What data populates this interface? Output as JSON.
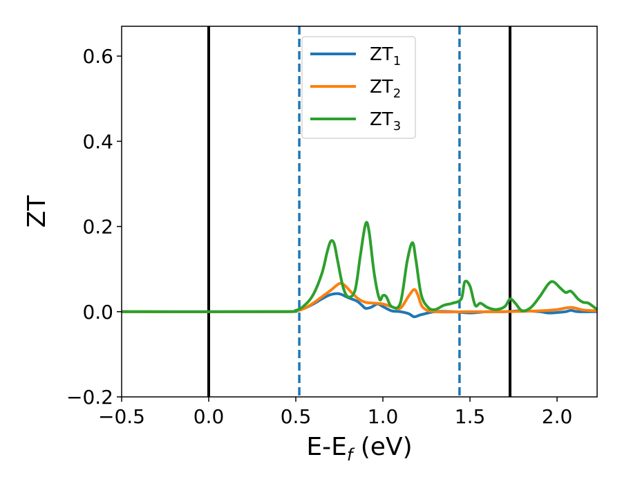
{
  "chart_data": {
    "type": "line",
    "xlabel": "E-E",
    "xlabel_sub": "f",
    "xlabel_unit": " (eV)",
    "ylabel": "ZT",
    "xlim": [
      -0.5,
      2.23
    ],
    "ylim": [
      -0.2,
      0.67
    ],
    "xticks": [
      -0.5,
      0.0,
      0.5,
      1.0,
      1.5,
      2.0
    ],
    "xtick_labels": [
      "−0.5",
      "0.0",
      "0.5",
      "1.0",
      "1.5",
      "2.0"
    ],
    "yticks": [
      -0.2,
      0.0,
      0.2,
      0.4,
      0.6
    ],
    "ytick_labels": [
      "−0.2",
      "0.0",
      "0.2",
      "0.4",
      "0.6"
    ],
    "grid": false,
    "legend_position": "top-center",
    "series": [
      {
        "name": "ZT",
        "sub": "1",
        "color": "#1f77b4",
        "x": [
          -0.5,
          0.4,
          0.5,
          0.55,
          0.6,
          0.65,
          0.7,
          0.75,
          0.8,
          0.85,
          0.88,
          0.9,
          0.93,
          0.97,
          1.0,
          1.05,
          1.1,
          1.15,
          1.18,
          1.22,
          1.3,
          1.4,
          1.5,
          1.6,
          1.7,
          1.8,
          1.9,
          1.95,
          2.0,
          2.05,
          2.08,
          2.12,
          2.2,
          2.23
        ],
        "y": [
          0.0,
          0.0,
          0.002,
          0.008,
          0.018,
          0.03,
          0.04,
          0.042,
          0.033,
          0.025,
          0.015,
          0.008,
          0.01,
          0.018,
          0.012,
          0.002,
          0.0,
          -0.005,
          -0.012,
          -0.007,
          0.0,
          0.0,
          -0.003,
          0.0,
          0.0,
          0.002,
          0.0,
          -0.003,
          -0.002,
          0.0,
          0.003,
          0.0,
          0.0,
          0.0
        ]
      },
      {
        "name": "ZT",
        "sub": "2",
        "color": "#ff7f0e",
        "x": [
          -0.5,
          0.4,
          0.5,
          0.55,
          0.6,
          0.65,
          0.7,
          0.75,
          0.78,
          0.82,
          0.86,
          0.9,
          0.95,
          1.0,
          1.05,
          1.1,
          1.15,
          1.18,
          1.2,
          1.23,
          1.3,
          1.5,
          1.7,
          1.9,
          2.0,
          2.08,
          2.15,
          2.23
        ],
        "y": [
          0.0,
          0.0,
          0.002,
          0.008,
          0.02,
          0.035,
          0.05,
          0.066,
          0.062,
          0.045,
          0.03,
          0.022,
          0.02,
          0.018,
          0.012,
          0.008,
          0.038,
          0.052,
          0.04,
          0.01,
          0.0,
          0.0,
          0.0,
          0.002,
          0.005,
          0.01,
          0.004,
          0.002
        ]
      },
      {
        "name": "ZT",
        "sub": "3",
        "color": "#2ca02c",
        "x": [
          -0.5,
          0.4,
          0.5,
          0.55,
          0.6,
          0.65,
          0.68,
          0.7,
          0.72,
          0.74,
          0.77,
          0.8,
          0.84,
          0.87,
          0.9,
          0.92,
          0.95,
          0.98,
          1.0,
          1.02,
          1.05,
          1.1,
          1.14,
          1.17,
          1.19,
          1.22,
          1.26,
          1.3,
          1.35,
          1.4,
          1.45,
          1.47,
          1.5,
          1.53,
          1.56,
          1.6,
          1.65,
          1.7,
          1.73,
          1.76,
          1.8,
          1.85,
          1.9,
          1.95,
          1.98,
          2.02,
          2.05,
          2.08,
          2.12,
          2.15,
          2.18,
          2.23
        ],
        "y": [
          0.0,
          0.0,
          0.003,
          0.015,
          0.04,
          0.09,
          0.14,
          0.165,
          0.16,
          0.12,
          0.06,
          0.035,
          0.05,
          0.13,
          0.205,
          0.19,
          0.09,
          0.03,
          0.038,
          0.035,
          0.012,
          0.02,
          0.12,
          0.162,
          0.12,
          0.04,
          0.01,
          0.005,
          0.015,
          0.02,
          0.03,
          0.07,
          0.06,
          0.015,
          0.02,
          0.01,
          0.005,
          0.012,
          0.03,
          0.02,
          0.002,
          0.01,
          0.035,
          0.065,
          0.07,
          0.055,
          0.045,
          0.048,
          0.03,
          0.022,
          0.02,
          0.005
        ]
      }
    ],
    "vertical_lines": [
      {
        "x": 0.0,
        "style": "solid",
        "color": "#000000"
      },
      {
        "x": 1.73,
        "style": "solid",
        "color": "#000000"
      },
      {
        "x": 0.52,
        "style": "dashed",
        "color": "#1f77b4"
      },
      {
        "x": 1.44,
        "style": "dashed",
        "color": "#1f77b4"
      }
    ]
  }
}
